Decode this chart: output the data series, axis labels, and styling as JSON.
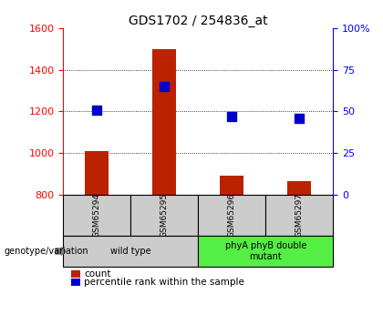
{
  "title": "GDS1702 / 254836_at",
  "samples": [
    "GSM65294",
    "GSM65295",
    "GSM65296",
    "GSM65297"
  ],
  "counts": [
    1010,
    1500,
    890,
    865
  ],
  "percentile_ranks": [
    51,
    65,
    47,
    46
  ],
  "ylim_left": [
    800,
    1600
  ],
  "ylim_right": [
    0,
    100
  ],
  "yticks_left": [
    800,
    1000,
    1200,
    1400,
    1600
  ],
  "yticks_right": [
    0,
    25,
    50,
    75,
    100
  ],
  "yticklabels_right": [
    "0",
    "25",
    "50",
    "75",
    "100%"
  ],
  "bar_color": "#bb2200",
  "dot_color": "#0000cc",
  "groups": [
    {
      "label": "wild type",
      "samples": [
        0,
        1
      ],
      "color": "#cccccc"
    },
    {
      "label": "phyA phyB double\nmutant",
      "samples": [
        2,
        3
      ],
      "color": "#55ee44"
    }
  ],
  "legend_count_label": "count",
  "legend_pct_label": "percentile rank within the sample",
  "genotype_label": "genotype/variation",
  "bar_width": 0.35,
  "dot_size": 55,
  "background_color": "#ffffff",
  "sample_cell_color": "#cccccc",
  "title_fontsize": 10
}
